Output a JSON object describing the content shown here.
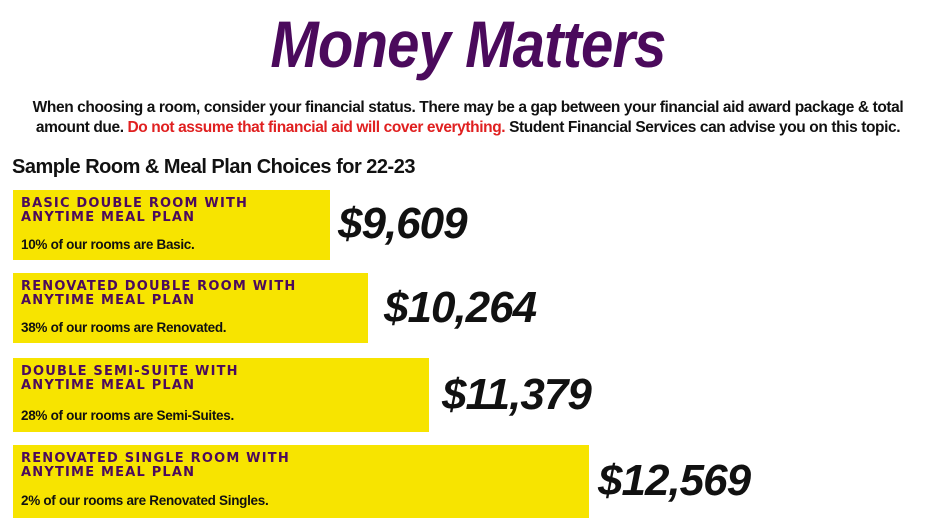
{
  "title": "Money Matters",
  "intro": {
    "text_before": "When choosing a room, consider your financial status. There may be a gap between your financial aid award package & total amount due. ",
    "warning": "Do not assume that financial aid will cover everything.",
    "text_after": " Student Financial Services can advise you on this topic."
  },
  "subheading": "Sample Room & Meal Plan Choices for 22-23",
  "plans": [
    {
      "name": "BASIC DOUBLE ROOM WITH\nANYTIME MEAL PLAN",
      "note": "10% of our rooms are Basic.",
      "price": "$9,609"
    },
    {
      "name": "RENOVATED DOUBLE ROOM WITH\nANYTIME MEAL PLAN",
      "note": " 38% of our rooms are Renovated.",
      "price": "$10,264"
    },
    {
      "name": "DOUBLE SEMI-SUITE WITH\nANYTIME MEAL PLAN",
      "note": "28% of our rooms are Semi-Suites.",
      "price": "$11,379"
    },
    {
      "name": "RENOVATED SINGLE ROOM WITH\nANYTIME MEAL PLAN",
      "note": " 2% of our rooms are Renovated Singles.",
      "price": "$12,569"
    }
  ],
  "colors": {
    "title": "#4b0a5c",
    "highlight": "#f7e400",
    "warning": "#e02020"
  }
}
